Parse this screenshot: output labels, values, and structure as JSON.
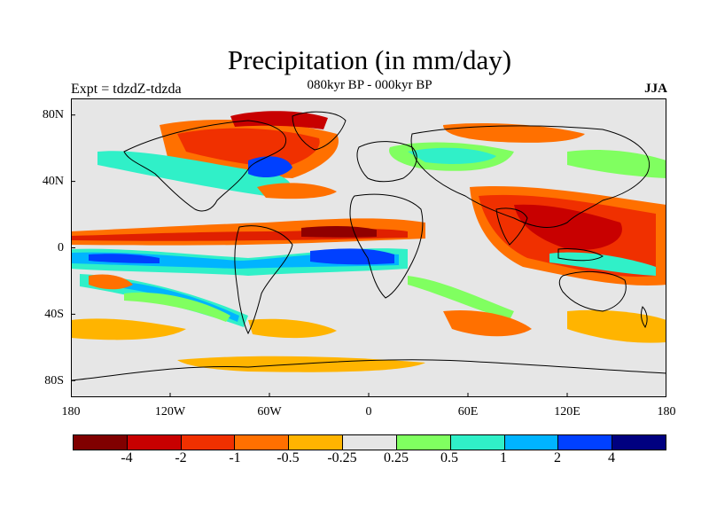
{
  "title": "Precipitation (in mm/day)",
  "subtitle": "080kyr BP - 000kyr BP",
  "left_label": "Expt = tdzdZ-tdzda",
  "right_label": "JJA",
  "map": {
    "projection": "cylindrical equidistant",
    "lon_range": [
      -180,
      180
    ],
    "lat_range": [
      -90,
      90
    ],
    "lat_ticks": [
      {
        "lat": 80,
        "label": "80N"
      },
      {
        "lat": 40,
        "label": "40N"
      },
      {
        "lat": 0,
        "label": "0"
      },
      {
        "lat": -40,
        "label": "40S"
      },
      {
        "lat": -80,
        "label": "80S"
      }
    ],
    "lon_ticks": [
      {
        "lon": -180,
        "label": "180"
      },
      {
        "lon": -120,
        "label": "120W"
      },
      {
        "lon": -60,
        "label": "60W"
      },
      {
        "lon": 0,
        "label": "0"
      },
      {
        "lon": 60,
        "label": "60E"
      },
      {
        "lon": 120,
        "label": "120E"
      },
      {
        "lon": 180,
        "label": "180"
      }
    ]
  },
  "colorbar": {
    "colors": [
      "#800000",
      "#c80000",
      "#f03000",
      "#ff7000",
      "#ffb400",
      "#e6e6e6",
      "#80ff60",
      "#30f0c8",
      "#00b4ff",
      "#0040ff",
      "#000080"
    ],
    "labels": [
      "-4",
      "-2",
      "-1",
      "-0.5",
      "-0.25",
      "0.25",
      "0.5",
      "1",
      "2",
      "4"
    ]
  }
}
